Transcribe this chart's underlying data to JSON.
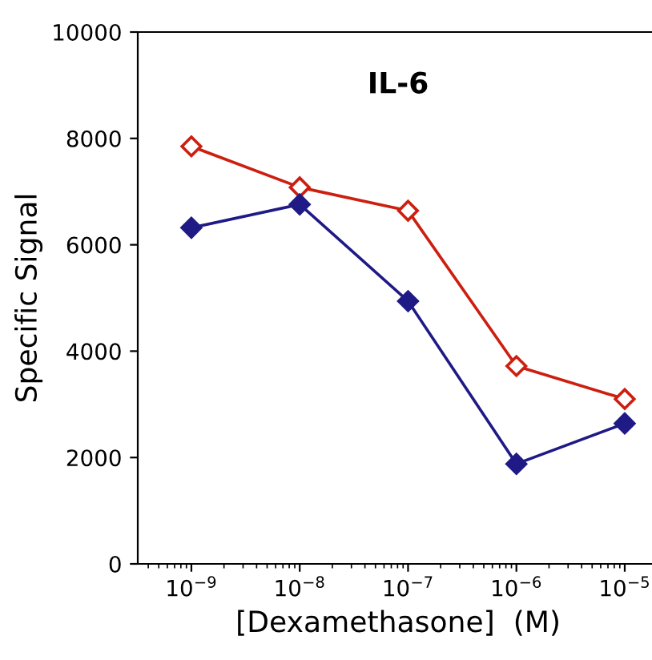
{
  "chart_data": {
    "type": "line",
    "title": "IL-6",
    "xlabel": "[Dexamethasone]  (M)",
    "ylabel": "Specific Signal",
    "x": [
      1e-09,
      1e-08,
      1e-07,
      1e-06,
      1e-05
    ],
    "series": [
      {
        "color": "#cc1f10",
        "values": [
          7850,
          7080,
          6640,
          3720,
          3100
        ]
      },
      {
        "color": "#1f1a85",
        "values": [
          6320,
          6760,
          4940,
          1880,
          2640
        ]
      }
    ],
    "log": "x",
    "xlim": [
      3.2e-10,
      2.05e-05
    ],
    "xticks": [
      {
        "value": 1e-09,
        "label": "10$^{−9}$"
      },
      {
        "value": 1e-08,
        "label": "10$^{−8}$"
      },
      {
        "value": 1e-07,
        "label": "10$^{−7}$"
      },
      {
        "value": 1e-06,
        "label": "10$^{−6}$"
      },
      {
        "value": 1e-05,
        "label": "10$^{−5}$"
      }
    ],
    "ylim": [
      0,
      10000
    ],
    "yticks": [
      0,
      2000,
      4000,
      6000,
      8000,
      10000
    ],
    "marker": "diamond",
    "line_style": "solid",
    "grid": false,
    "legend": false
  }
}
